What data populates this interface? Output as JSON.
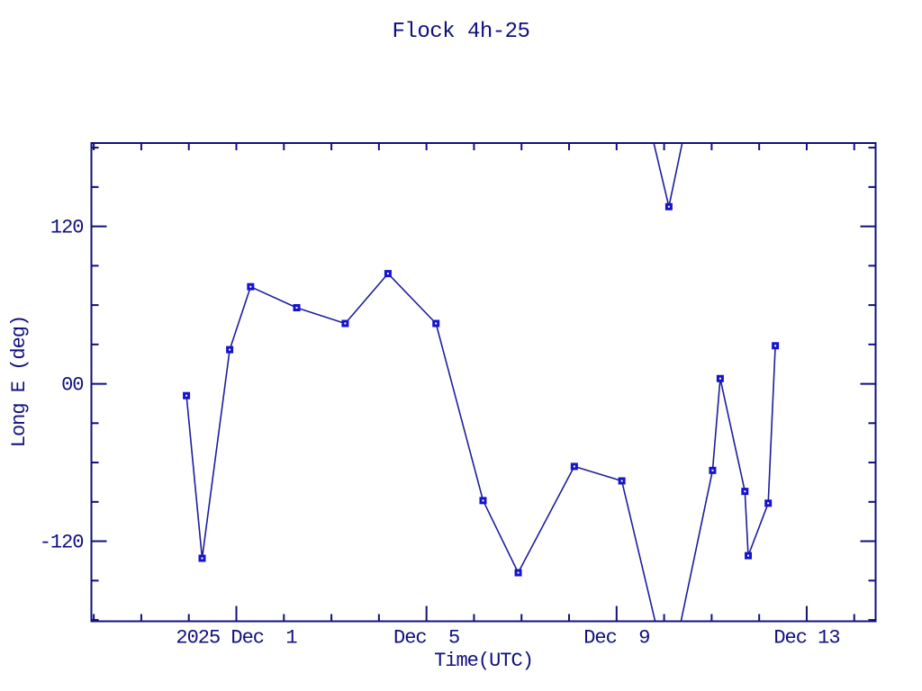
{
  "colors": {
    "background": "#ffffff",
    "axis": "#10107e",
    "text": "#10107e",
    "line": "#1d1d9c",
    "marker": "#1414cd",
    "marker_center": "#ffffff"
  },
  "chart_data": {
    "type": "line",
    "title": "Flock 4h-25",
    "xlabel": "Time(UTC)",
    "ylabel": "Long E (deg)",
    "x_unit": "days since 2025 Nov 28 00:00 UTC",
    "xlim": [
      -0.05,
      16.45
    ],
    "ylim": [
      -181,
      183.5
    ],
    "grid": false,
    "legend": "none",
    "wrap_degrees": 360,
    "x_major_ticks": [
      {
        "t": 3,
        "label": "2025 Dec  1"
      },
      {
        "t": 7,
        "label": "Dec  5"
      },
      {
        "t": 11,
        "label": "Dec  9"
      },
      {
        "t": 15,
        "label": "Dec 13"
      }
    ],
    "x_minor_ticks": [
      0,
      1,
      2,
      4,
      5,
      6,
      8,
      9,
      10,
      12,
      13,
      14,
      16
    ],
    "y_major_ticks": [
      {
        "v": 120,
        "label": "120"
      },
      {
        "v": 0,
        "label": "00"
      },
      {
        "v": -120,
        "label": "-120"
      }
    ],
    "y_minor_ticks": [
      180,
      150,
      90,
      60,
      30,
      -30,
      -60,
      -90,
      -150,
      -180
    ],
    "series": [
      {
        "name": "Long E",
        "marker": "square",
        "points": [
          {
            "t": 1.95,
            "v": -9
          },
          {
            "t": 2.28,
            "v": -133
          },
          {
            "t": 2.86,
            "v": 26
          },
          {
            "t": 3.3,
            "v": 74
          },
          {
            "t": 4.27,
            "v": 58
          },
          {
            "t": 5.29,
            "v": 46
          },
          {
            "t": 6.19,
            "v": 84
          },
          {
            "t": 7.2,
            "v": 46
          },
          {
            "t": 8.19,
            "v": -89
          },
          {
            "t": 8.93,
            "v": -144
          },
          {
            "t": 10.11,
            "v": -63
          },
          {
            "t": 11.11,
            "v": -74
          },
          {
            "t": 12.1,
            "v": 135
          },
          {
            "t": 13.02,
            "v": -66
          },
          {
            "t": 13.18,
            "v": 4
          },
          {
            "t": 13.7,
            "v": -82
          },
          {
            "t": 13.77,
            "v": -131
          },
          {
            "t": 14.19,
            "v": -91
          },
          {
            "t": 14.34,
            "v": 29
          }
        ]
      }
    ]
  }
}
